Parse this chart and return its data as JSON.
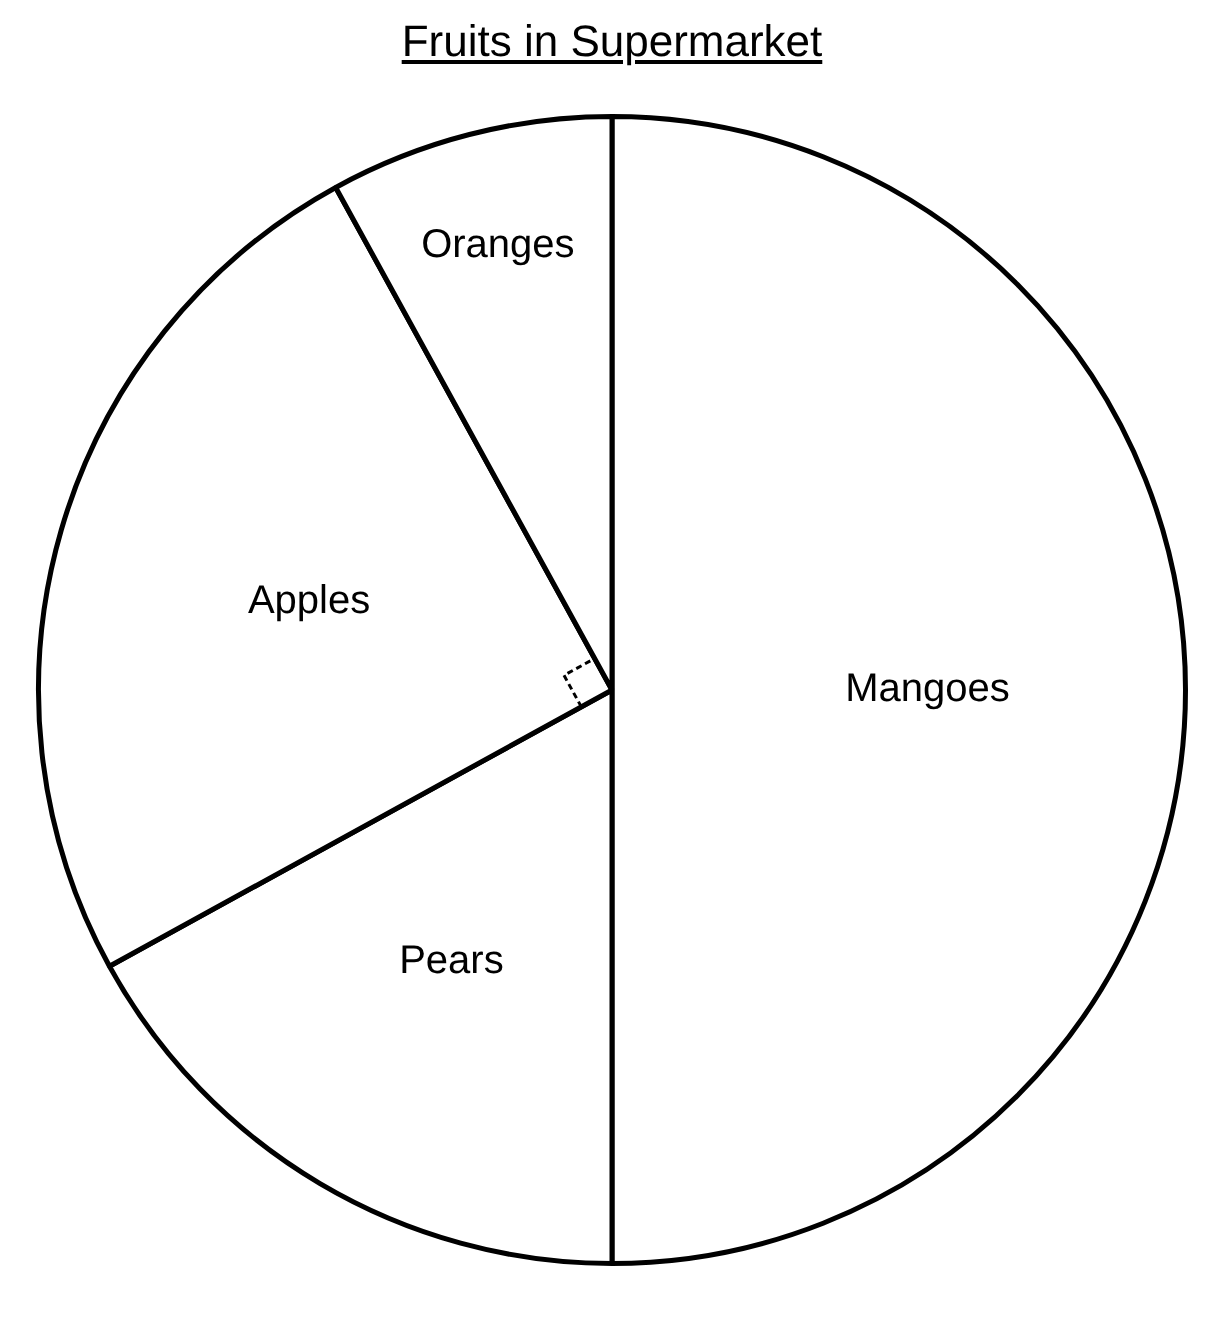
{
  "chart_data": {
    "type": "pie",
    "title": "Fruits in Supermarket",
    "categories": [
      "Mangoes",
      "Pears",
      "Apples",
      "Oranges"
    ],
    "values": [
      50,
      17,
      25,
      8
    ],
    "colors": [
      "#ffffff",
      "#ffffff",
      "#ffffff",
      "#ffffff"
    ]
  }
}
